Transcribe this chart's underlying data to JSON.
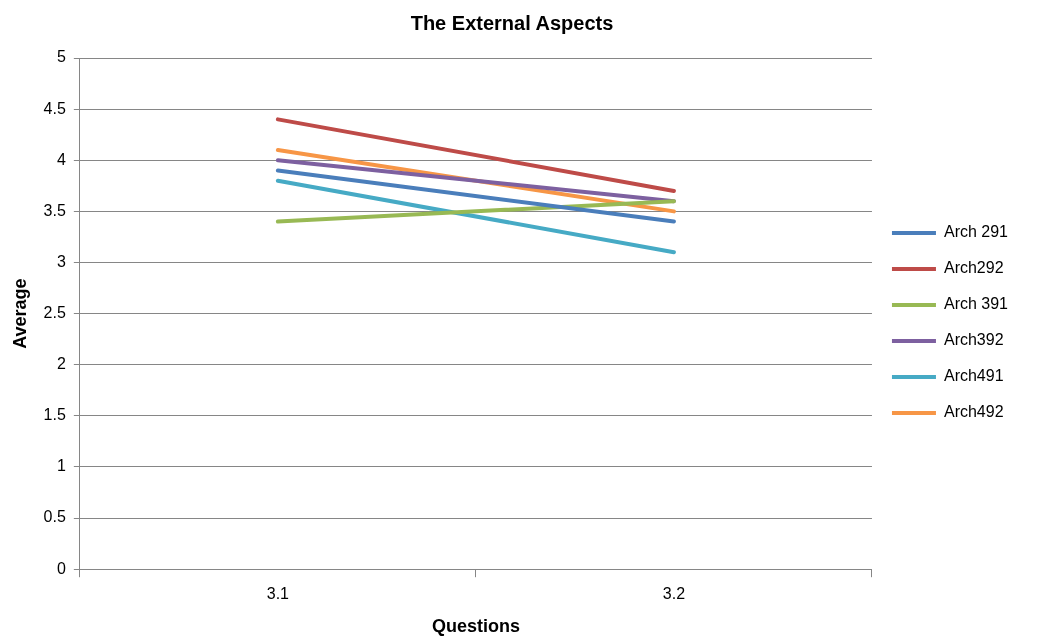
{
  "chart_data": {
    "type": "line",
    "title": "The External Aspects",
    "xlabel": "Questions",
    "ylabel": "Average",
    "categories": [
      "3.1",
      "3.2"
    ],
    "series": [
      {
        "name": "Arch 291",
        "color": "#4a7ebb",
        "values": [
          3.9,
          3.4
        ]
      },
      {
        "name": "Arch292",
        "color": "#be4b48",
        "values": [
          4.4,
          3.7
        ]
      },
      {
        "name": "Arch 391",
        "color": "#98b954",
        "values": [
          3.4,
          3.6
        ]
      },
      {
        "name": "Arch392",
        "color": "#7d60a0",
        "values": [
          4.0,
          3.6
        ]
      },
      {
        "name": "Arch491",
        "color": "#46aac5",
        "values": [
          3.8,
          3.1
        ]
      },
      {
        "name": "Arch492",
        "color": "#f79646",
        "values": [
          4.1,
          3.5
        ]
      }
    ],
    "ylim": [
      0,
      5
    ],
    "yticks": [
      0,
      0.5,
      1,
      1.5,
      2,
      2.5,
      3,
      3.5,
      4,
      4.5,
      5
    ],
    "grid": "y",
    "legend": "right",
    "marker": "none",
    "line_style": "solid"
  }
}
